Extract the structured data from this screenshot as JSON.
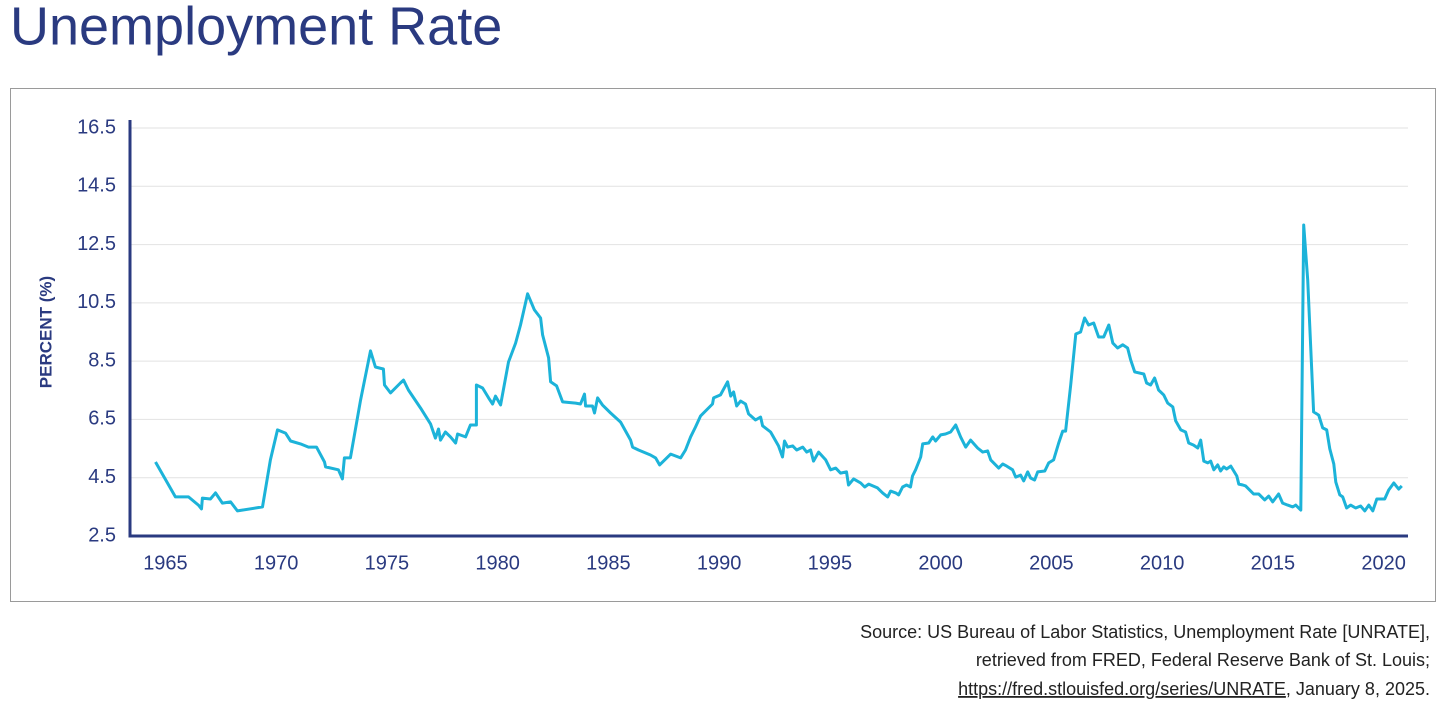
{
  "chart_data": {
    "type": "line",
    "title": "Unemployment Rate",
    "ylabel": "PERCENT (%)",
    "color": "#1cb3d9",
    "grid": true,
    "xlim": [
      1963.4,
      2021.1
    ],
    "xticks": [
      1965,
      1970,
      1975,
      1980,
      1985,
      1990,
      1995,
      2000,
      2005,
      2010,
      2015,
      2020
    ],
    "ylim": [
      2.5,
      16.5
    ],
    "yticks": [
      2.5,
      4.5,
      6.5,
      8.5,
      10.5,
      12.5,
      14.5,
      16.5
    ],
    "x": [
      1964.55,
      1965.45,
      1966.04,
      1966.49,
      1966.63,
      1966.67,
      1967.03,
      1967.26,
      1967.57,
      1967.94,
      1968.25,
      1969.38,
      1969.74,
      1970.06,
      1970.42,
      1970.65,
      1971.1,
      1971.46,
      1971.82,
      1972.18,
      1972.23,
      1972.81,
      1972.99,
      1973.08,
      1973.35,
      1973.81,
      1974.26,
      1974.48,
      1974.84,
      1974.89,
      1975.16,
      1975.61,
      1975.75,
      1975.97,
      1976.52,
      1976.97,
      1977.19,
      1977.33,
      1977.42,
      1977.64,
      1977.87,
      1978.1,
      1978.19,
      1978.55,
      1978.77,
      1979.04,
      1979.04,
      1979.32,
      1979.59,
      1979.77,
      1979.9,
      1980.13,
      1980.49,
      1980.81,
      1981.03,
      1981.35,
      1981.66,
      1981.94,
      1982.03,
      1982.3,
      1982.39,
      1982.66,
      1982.93,
      1983.52,
      1983.74,
      1983.92,
      1983.97,
      1984.28,
      1984.37,
      1984.51,
      1984.73,
      1985.1,
      1985.55,
      1986.0,
      1986.09,
      1986.36,
      1986.9,
      1987.13,
      1987.31,
      1987.81,
      1988.26,
      1988.48,
      1988.71,
      1988.93,
      1989.16,
      1989.7,
      1989.75,
      1990.06,
      1990.38,
      1990.52,
      1990.65,
      1990.79,
      1990.97,
      1991.19,
      1991.33,
      1991.64,
      1991.87,
      1991.96,
      1992.32,
      1992.68,
      1992.86,
      1992.95,
      1993.09,
      1993.32,
      1993.5,
      1993.77,
      1993.95,
      1994.13,
      1994.26,
      1994.49,
      1994.81,
      1995.03,
      1995.26,
      1995.48,
      1995.75,
      1995.84,
      1996.07,
      1996.39,
      1996.57,
      1996.75,
      1997.15,
      1997.38,
      1997.61,
      1997.74,
      1997.97,
      1998.1,
      1998.28,
      1998.46,
      1998.64,
      1998.73,
      1998.87,
      1999.1,
      1999.19,
      1999.46,
      1999.64,
      1999.77,
      2000.0,
      2000.22,
      2000.45,
      2000.68,
      2000.9,
      2001.13,
      2001.35,
      2001.67,
      2001.9,
      2002.12,
      2002.26,
      2002.62,
      2002.8,
      2002.98,
      2003.25,
      2003.39,
      2003.61,
      2003.75,
      2003.93,
      2004.06,
      2004.24,
      2004.38,
      2004.7,
      2004.88,
      2005.1,
      2005.33,
      2005.51,
      2005.64,
      2005.87,
      2006.1,
      2006.32,
      2006.5,
      2006.68,
      2006.91,
      2007.13,
      2007.36,
      2007.59,
      2007.77,
      2007.99,
      2008.22,
      2008.44,
      2008.58,
      2008.76,
      2009.17,
      2009.3,
      2009.48,
      2009.66,
      2009.84,
      2010.07,
      2010.25,
      2010.48,
      2010.61,
      2010.84,
      2011.06,
      2011.2,
      2011.42,
      2011.61,
      2011.74,
      2011.88,
      2012.06,
      2012.19,
      2012.33,
      2012.51,
      2012.64,
      2012.78,
      2012.91,
      2013.1,
      2013.37,
      2013.46,
      2013.64,
      2013.77,
      2014.0,
      2014.13,
      2014.36,
      2014.63,
      2014.81,
      2014.99,
      2015.26,
      2015.44,
      2015.67,
      2015.9,
      2016.03,
      2016.26,
      2016.39,
      2016.57,
      2016.84,
      2017.07,
      2017.25,
      2017.43,
      2017.57,
      2017.75,
      2017.84,
      2018.02,
      2018.15,
      2018.33,
      2018.51,
      2018.74,
      2018.96,
      2019.15,
      2019.33,
      2019.51,
      2019.69,
      2019.91,
      2020.05,
      2020.23,
      2020.46,
      2020.68,
      2020.82
    ],
    "values": [
      5.04,
      3.84,
      3.84,
      3.56,
      3.43,
      3.8,
      3.77,
      3.98,
      3.63,
      3.67,
      3.36,
      3.5,
      5.11,
      6.14,
      6.03,
      5.76,
      5.66,
      5.55,
      5.55,
      5.04,
      4.87,
      4.77,
      4.46,
      5.18,
      5.18,
      7.17,
      8.85,
      8.3,
      8.23,
      7.68,
      7.41,
      7.75,
      7.85,
      7.51,
      6.89,
      6.34,
      5.86,
      6.17,
      5.79,
      6.07,
      5.9,
      5.69,
      6.0,
      5.9,
      6.31,
      6.31,
      7.68,
      7.58,
      7.24,
      7.03,
      7.3,
      7.0,
      8.47,
      9.12,
      9.74,
      10.81,
      10.26,
      9.98,
      9.4,
      8.61,
      7.79,
      7.65,
      7.1,
      7.06,
      7.03,
      7.37,
      6.96,
      6.96,
      6.72,
      7.24,
      7.0,
      6.72,
      6.41,
      5.79,
      5.55,
      5.45,
      5.28,
      5.18,
      4.94,
      5.31,
      5.18,
      5.45,
      5.9,
      6.24,
      6.62,
      7.03,
      7.24,
      7.34,
      7.79,
      7.3,
      7.44,
      6.96,
      7.13,
      7.03,
      6.69,
      6.48,
      6.58,
      6.28,
      6.07,
      5.59,
      5.21,
      5.76,
      5.55,
      5.59,
      5.45,
      5.55,
      5.38,
      5.45,
      5.07,
      5.38,
      5.11,
      4.77,
      4.83,
      4.66,
      4.7,
      4.25,
      4.46,
      4.32,
      4.18,
      4.28,
      4.15,
      3.98,
      3.84,
      4.04,
      3.98,
      3.91,
      4.18,
      4.25,
      4.18,
      4.56,
      4.77,
      5.21,
      5.66,
      5.69,
      5.9,
      5.76,
      5.97,
      6.0,
      6.07,
      6.31,
      5.9,
      5.55,
      5.79,
      5.52,
      5.38,
      5.42,
      5.11,
      4.83,
      4.97,
      4.9,
      4.77,
      4.52,
      4.59,
      4.39,
      4.7,
      4.49,
      4.42,
      4.7,
      4.73,
      5.01,
      5.11,
      5.69,
      6.1,
      6.1,
      7.68,
      9.43,
      9.5,
      9.98,
      9.74,
      9.81,
      9.33,
      9.33,
      9.74,
      9.12,
      8.95,
      9.06,
      8.95,
      8.54,
      8.13,
      8.06,
      7.75,
      7.68,
      7.92,
      7.51,
      7.34,
      7.06,
      6.93,
      6.45,
      6.14,
      6.07,
      5.69,
      5.62,
      5.52,
      5.79,
      5.07,
      5.01,
      5.07,
      4.77,
      4.94,
      4.73,
      4.87,
      4.8,
      4.9,
      4.56,
      4.28,
      4.25,
      4.22,
      4.04,
      3.94,
      3.94,
      3.74,
      3.87,
      3.67,
      3.94,
      3.63,
      3.56,
      3.5,
      3.56,
      3.39,
      13.17,
      11.29,
      6.76,
      6.65,
      6.21,
      6.14,
      5.49,
      4.97,
      4.35,
      3.91,
      3.84,
      3.46,
      3.56,
      3.46,
      3.53,
      3.36,
      3.56,
      3.36,
      3.77,
      3.77,
      3.77,
      4.08,
      4.32,
      4.11,
      4.22
    ],
    "source": [
      "Source: US Bureau of Labor Statistics, Unemployment Rate [UNRATE],",
      "retrieved from FRED, Federal Reserve Bank of St. Louis;"
    ],
    "source_link": "https://fred.stlouisfed.org/series/UNRATE",
    "source_date": ", January 8, 2025."
  }
}
